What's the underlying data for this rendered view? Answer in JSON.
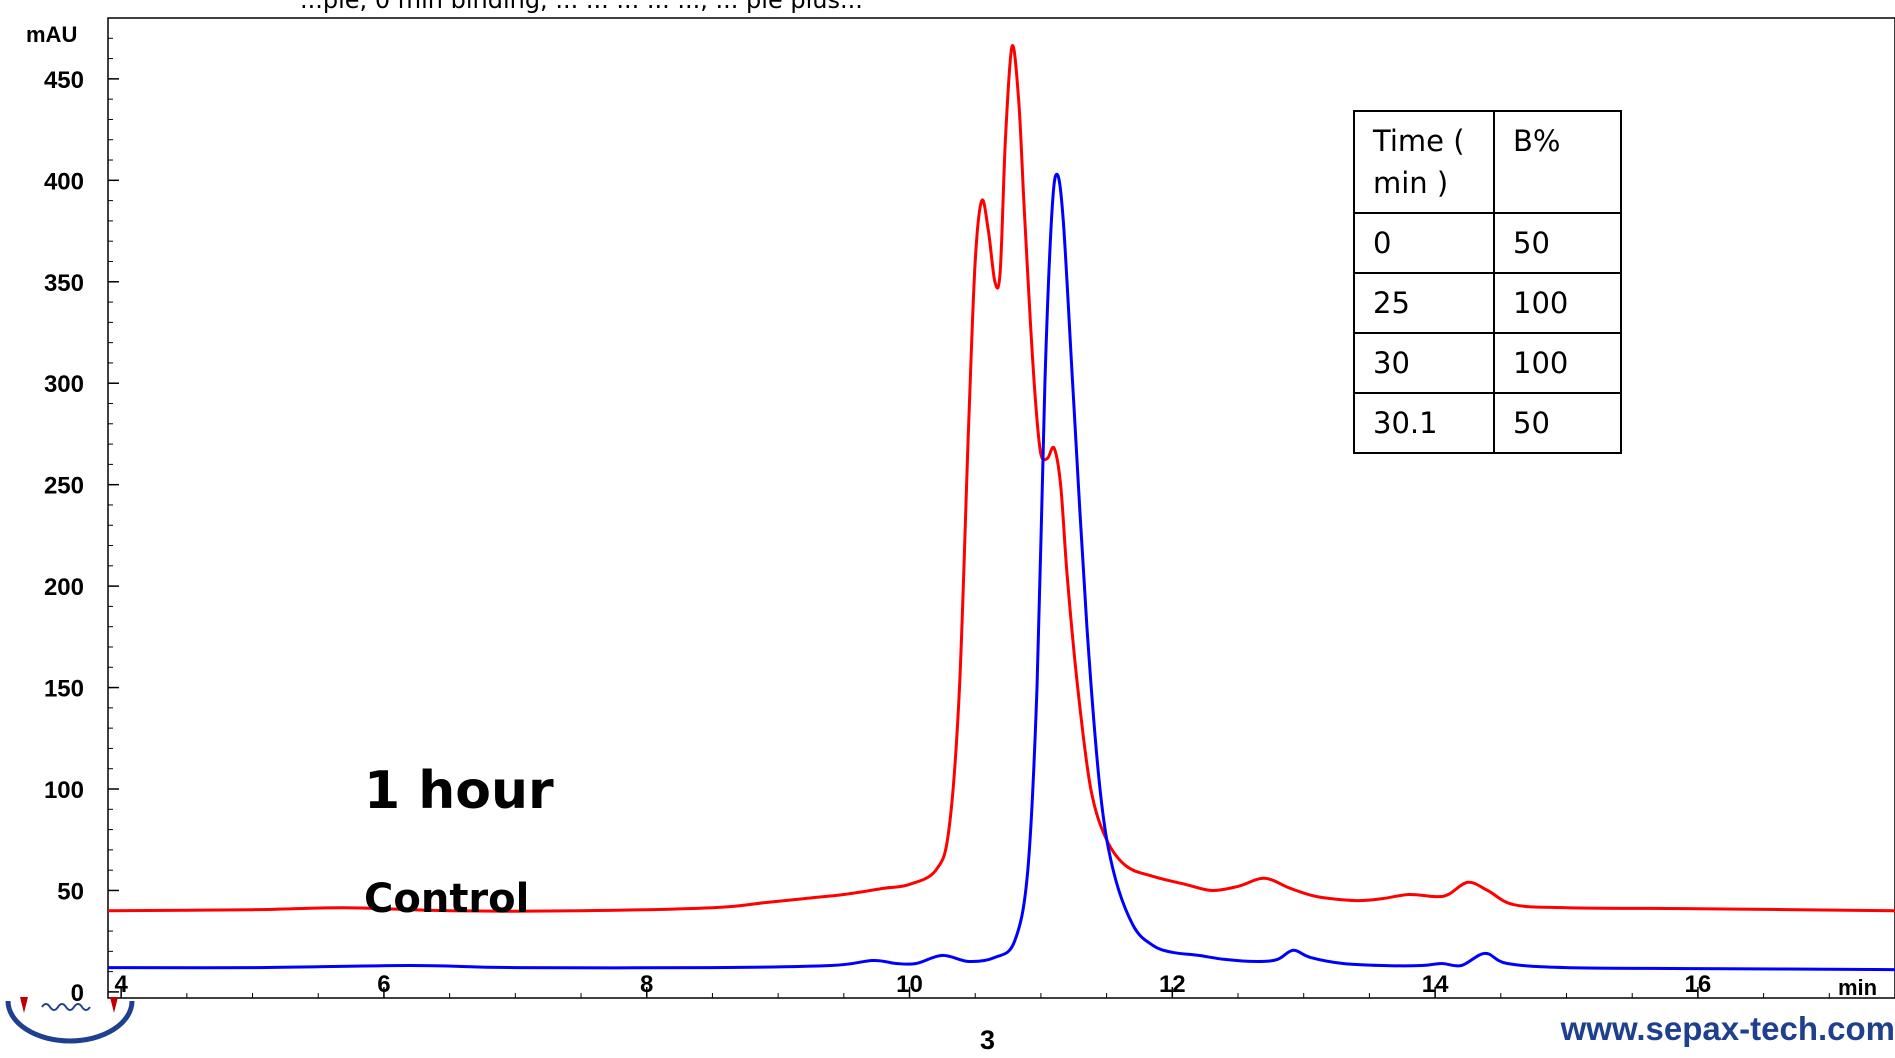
{
  "caption_fragment": "...ple, 0 min binding, ... ... ... ... ..., ... ple plus...",
  "chart_data": {
    "type": "line",
    "ylabel": "mAU",
    "xlabel": "min",
    "xlim": [
      3.9,
      17.5
    ],
    "ylim": [
      -3,
      480
    ],
    "x_ticks": [
      4,
      6,
      8,
      10,
      12,
      14,
      16
    ],
    "y_ticks": [
      0,
      50,
      100,
      150,
      200,
      250,
      300,
      350,
      400,
      450
    ],
    "grid": false,
    "series": [
      {
        "name": "1 hour",
        "color": "#ff0000",
        "points": [
          [
            3.9,
            40
          ],
          [
            5.0,
            40.5
          ],
          [
            5.7,
            41.5
          ],
          [
            6.5,
            40
          ],
          [
            7.5,
            40
          ],
          [
            8.5,
            41.5
          ],
          [
            8.9,
            44
          ],
          [
            9.2,
            46
          ],
          [
            9.5,
            48
          ],
          [
            9.8,
            51
          ],
          [
            10.0,
            53
          ],
          [
            10.2,
            60
          ],
          [
            10.3,
            80
          ],
          [
            10.38,
            150
          ],
          [
            10.45,
            280
          ],
          [
            10.5,
            360
          ],
          [
            10.55,
            390
          ],
          [
            10.6,
            375
          ],
          [
            10.65,
            350
          ],
          [
            10.69,
            355
          ],
          [
            10.73,
            420
          ],
          [
            10.78,
            466
          ],
          [
            10.83,
            440
          ],
          [
            10.87,
            390
          ],
          [
            10.92,
            330
          ],
          [
            10.96,
            290
          ],
          [
            11.0,
            265
          ],
          [
            11.05,
            263
          ],
          [
            11.1,
            268
          ],
          [
            11.15,
            250
          ],
          [
            11.2,
            205
          ],
          [
            11.28,
            150
          ],
          [
            11.38,
            100
          ],
          [
            11.5,
            75
          ],
          [
            11.65,
            62
          ],
          [
            11.85,
            57
          ],
          [
            12.1,
            53
          ],
          [
            12.3,
            50
          ],
          [
            12.5,
            52
          ],
          [
            12.7,
            56
          ],
          [
            12.9,
            51
          ],
          [
            13.1,
            47
          ],
          [
            13.4,
            45
          ],
          [
            13.6,
            46
          ],
          [
            13.8,
            48
          ],
          [
            14.0,
            47
          ],
          [
            14.1,
            48
          ],
          [
            14.25,
            54
          ],
          [
            14.4,
            50
          ],
          [
            14.6,
            43
          ],
          [
            15.0,
            41.5
          ],
          [
            16.0,
            41
          ],
          [
            17.5,
            40
          ]
        ]
      },
      {
        "name": "Control",
        "color": "#0000ff",
        "points": [
          [
            3.9,
            12
          ],
          [
            5.0,
            12
          ],
          [
            6.2,
            13
          ],
          [
            7.0,
            12
          ],
          [
            8.5,
            12
          ],
          [
            9.4,
            13
          ],
          [
            9.72,
            15.5
          ],
          [
            9.9,
            14
          ],
          [
            10.05,
            14
          ],
          [
            10.25,
            18
          ],
          [
            10.45,
            15
          ],
          [
            10.65,
            17
          ],
          [
            10.8,
            25
          ],
          [
            10.9,
            60
          ],
          [
            10.97,
            150
          ],
          [
            11.03,
            300
          ],
          [
            11.08,
            380
          ],
          [
            11.12,
            403
          ],
          [
            11.17,
            380
          ],
          [
            11.25,
            290
          ],
          [
            11.35,
            180
          ],
          [
            11.45,
            100
          ],
          [
            11.55,
            60
          ],
          [
            11.7,
            33
          ],
          [
            11.85,
            23
          ],
          [
            12.0,
            19.5
          ],
          [
            12.2,
            18
          ],
          [
            12.4,
            16
          ],
          [
            12.65,
            15
          ],
          [
            12.8,
            16
          ],
          [
            12.92,
            20.5
          ],
          [
            13.05,
            17
          ],
          [
            13.3,
            14
          ],
          [
            13.6,
            13
          ],
          [
            13.9,
            13
          ],
          [
            14.05,
            14
          ],
          [
            14.2,
            13
          ],
          [
            14.38,
            19
          ],
          [
            14.55,
            14
          ],
          [
            15.0,
            12
          ],
          [
            16.0,
            11.5
          ],
          [
            17.5,
            11
          ]
        ]
      }
    ],
    "labels": {
      "red_trace": "1 hour",
      "blue_trace": "Control"
    }
  },
  "gradient_table": {
    "headers": [
      "Time ( min )",
      "B%"
    ],
    "rows": [
      [
        "0",
        "50"
      ],
      [
        "25",
        "100"
      ],
      [
        "30",
        "100"
      ],
      [
        "30.1",
        "50"
      ]
    ]
  },
  "page_number": "3",
  "website": "www.sepax-tech.com"
}
